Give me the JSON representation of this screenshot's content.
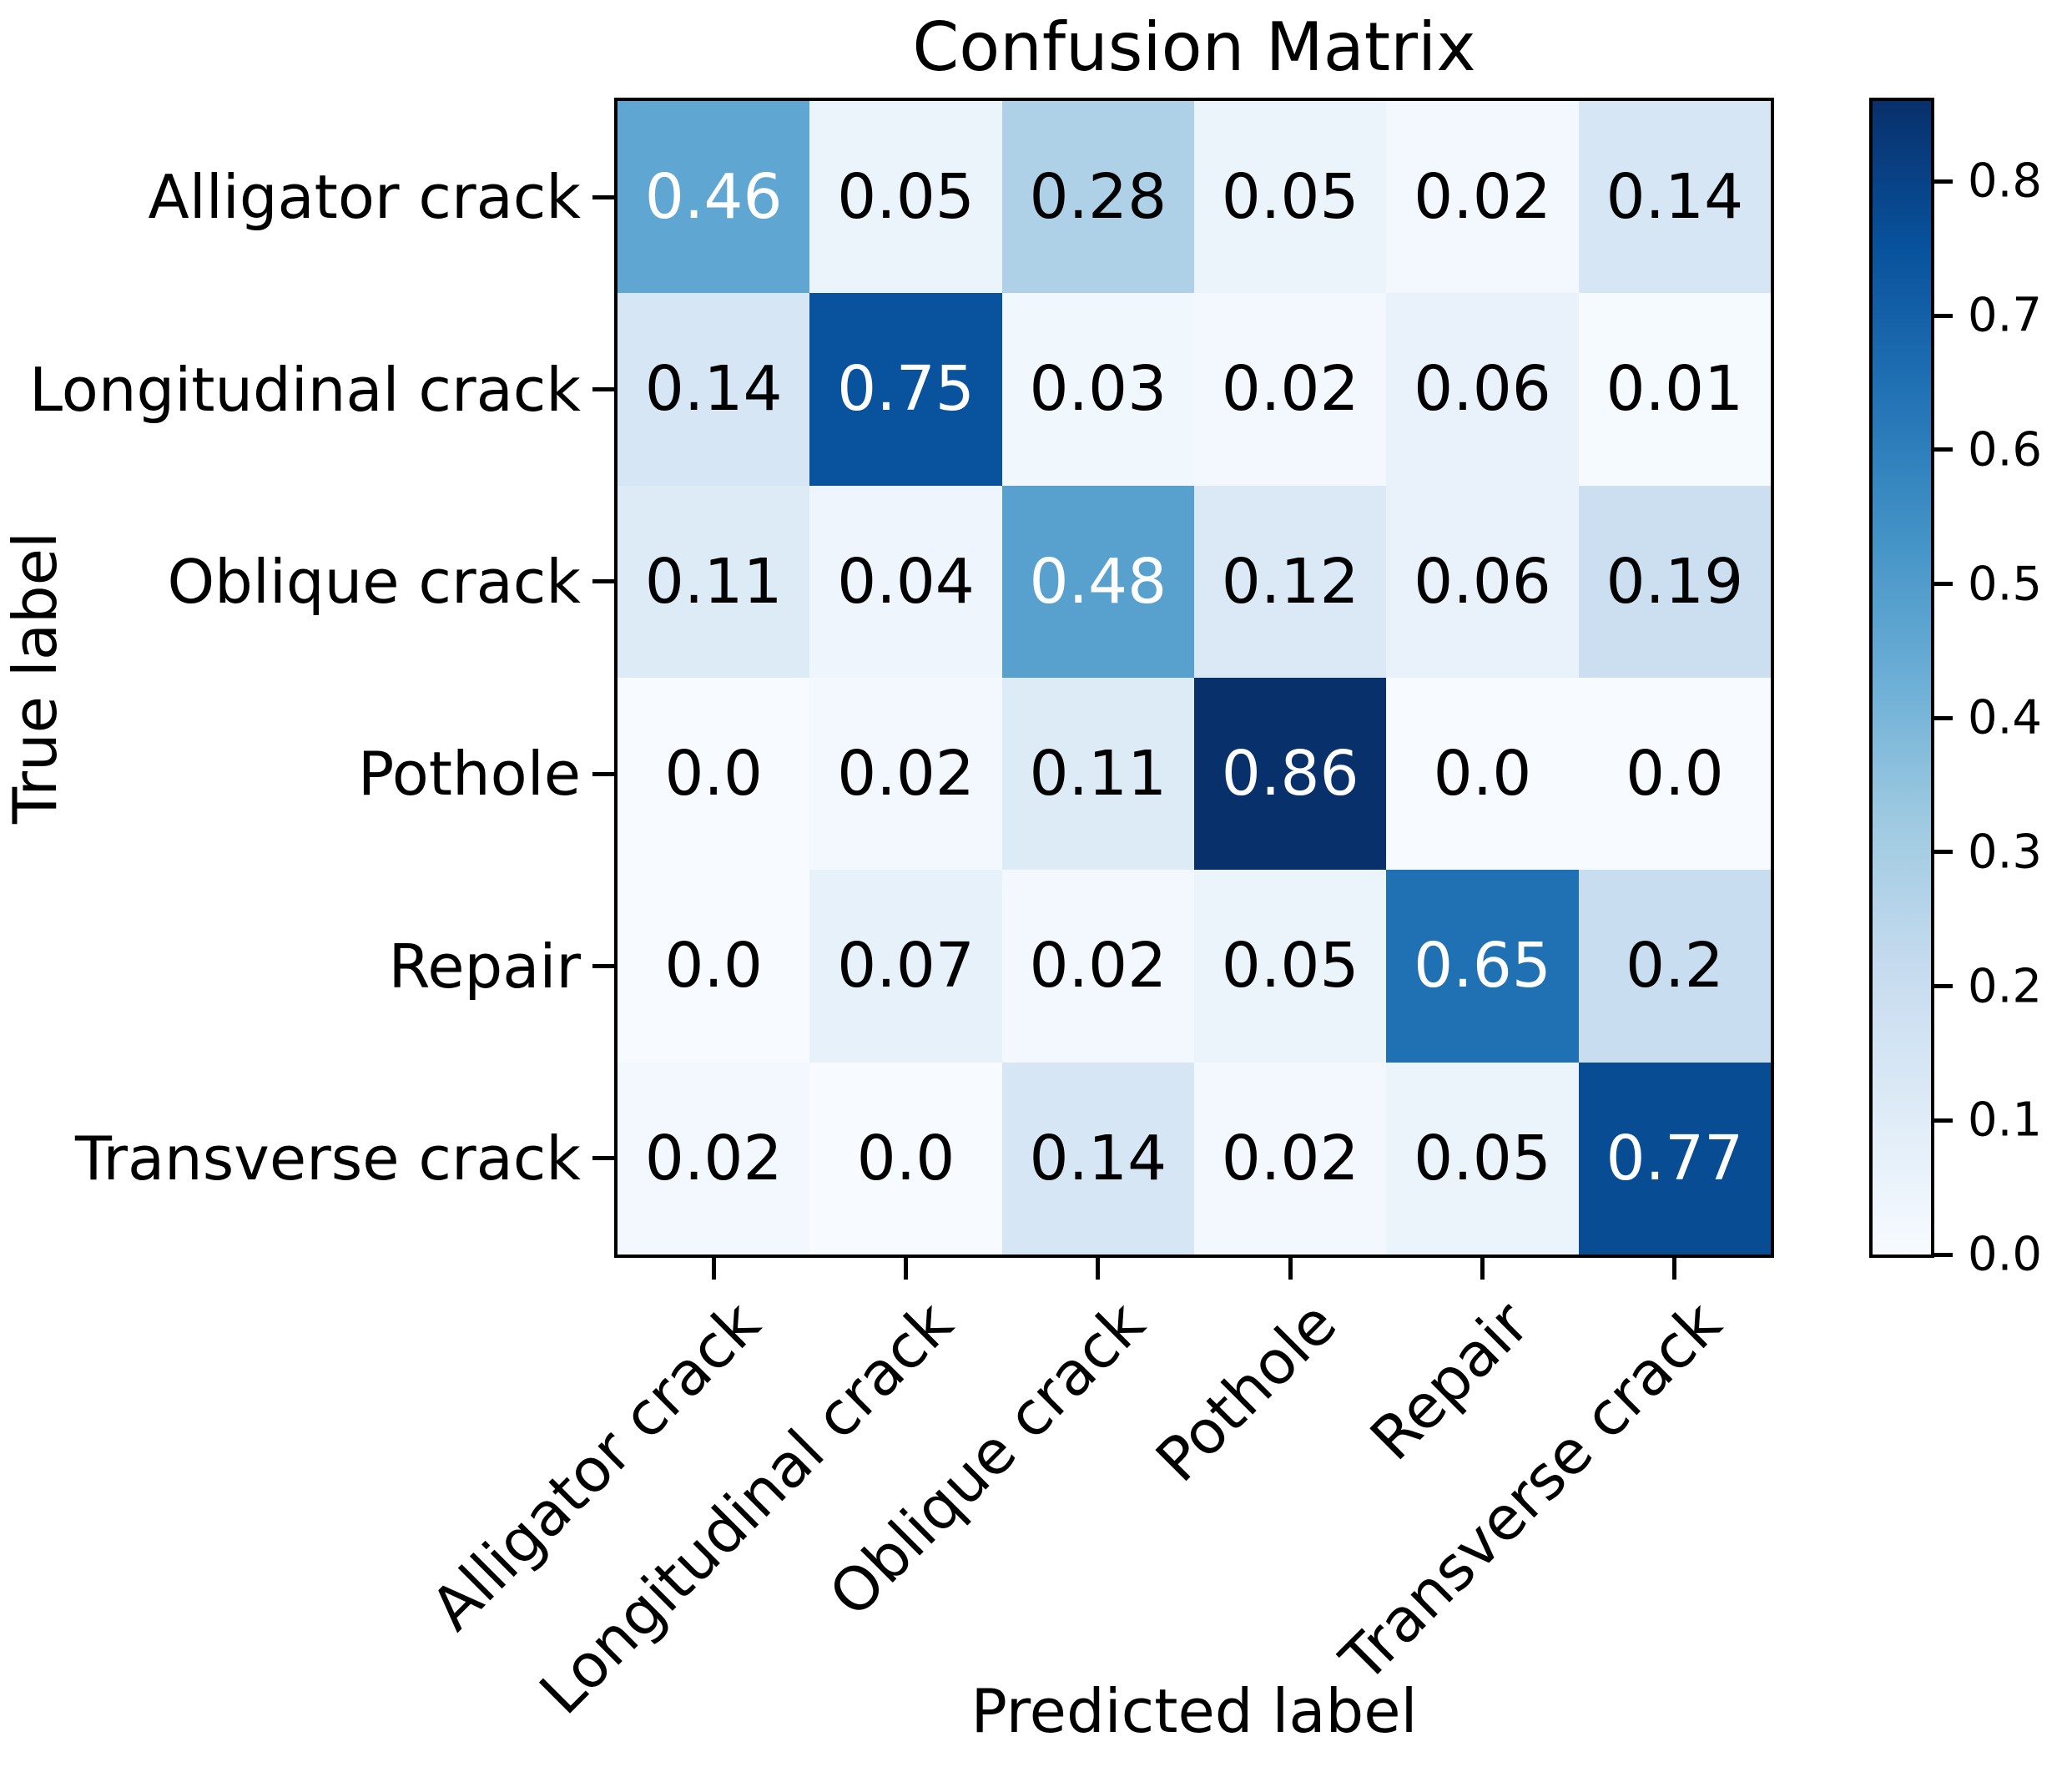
{
  "title": "Confusion Matrix",
  "x_axis_label": "Predicted label",
  "y_axis_label": "True label",
  "classes": [
    "Alligator crack",
    "Longitudinal crack",
    "Oblique crack",
    "Pothole",
    "Repair",
    "Transverse crack"
  ],
  "chart_data": {
    "type": "heatmap",
    "title": "Confusion Matrix",
    "xlabel": "Predicted label",
    "ylabel": "True label",
    "x_categories": [
      "Alligator crack",
      "Longitudinal crack",
      "Oblique crack",
      "Pothole",
      "Repair",
      "Transverse crack"
    ],
    "y_categories": [
      "Alligator crack",
      "Longitudinal crack",
      "Oblique crack",
      "Pothole",
      "Repair",
      "Transverse crack"
    ],
    "matrix": [
      [
        0.46,
        0.05,
        0.28,
        0.05,
        0.02,
        0.14
      ],
      [
        0.14,
        0.75,
        0.03,
        0.02,
        0.06,
        0.01
      ],
      [
        0.11,
        0.04,
        0.48,
        0.12,
        0.06,
        0.19
      ],
      [
        0.0,
        0.02,
        0.11,
        0.86,
        0.0,
        0.0
      ],
      [
        0.0,
        0.07,
        0.02,
        0.05,
        0.65,
        0.2
      ],
      [
        0.02,
        0.0,
        0.14,
        0.02,
        0.05,
        0.77
      ]
    ],
    "cell_labels": [
      [
        "0.46",
        "0.05",
        "0.28",
        "0.05",
        "0.02",
        "0.14"
      ],
      [
        "0.14",
        "0.75",
        "0.03",
        "0.02",
        "0.06",
        "0.01"
      ],
      [
        "0.11",
        "0.04",
        "0.48",
        "0.12",
        "0.06",
        "0.19"
      ],
      [
        "0.0",
        "0.02",
        "0.11",
        "0.86",
        "0.0",
        "0.0"
      ],
      [
        "0.0",
        "0.07",
        "0.02",
        "0.05",
        "0.65",
        "0.2"
      ],
      [
        "0.02",
        "0.0",
        "0.14",
        "0.02",
        "0.05",
        "0.77"
      ]
    ],
    "vmin": 0.0,
    "vmax": 0.86,
    "colormap": "Blues",
    "grid": false,
    "legend_position": "colorbar-right",
    "colorbar_ticks": [
      {
        "label": "0.0",
        "value": 0.0
      },
      {
        "label": "0.1",
        "value": 0.1
      },
      {
        "label": "0.2",
        "value": 0.2
      },
      {
        "label": "0.3",
        "value": 0.3
      },
      {
        "label": "0.4",
        "value": 0.4
      },
      {
        "label": "0.5",
        "value": 0.5
      },
      {
        "label": "0.6",
        "value": 0.6
      },
      {
        "label": "0.7",
        "value": 0.7
      },
      {
        "label": "0.8",
        "value": 0.8
      }
    ]
  },
  "colors": {
    "background": "#ffffff",
    "spine": "#000000",
    "cell_text_dark": "#000000",
    "cell_text_light": "#ffffff",
    "colormap_stops": [
      "#F7FBFF",
      "#DEEBF7",
      "#C6DBEF",
      "#9ECAE1",
      "#6BAED6",
      "#4292C6",
      "#2171B5",
      "#08519C",
      "#08306B"
    ]
  }
}
